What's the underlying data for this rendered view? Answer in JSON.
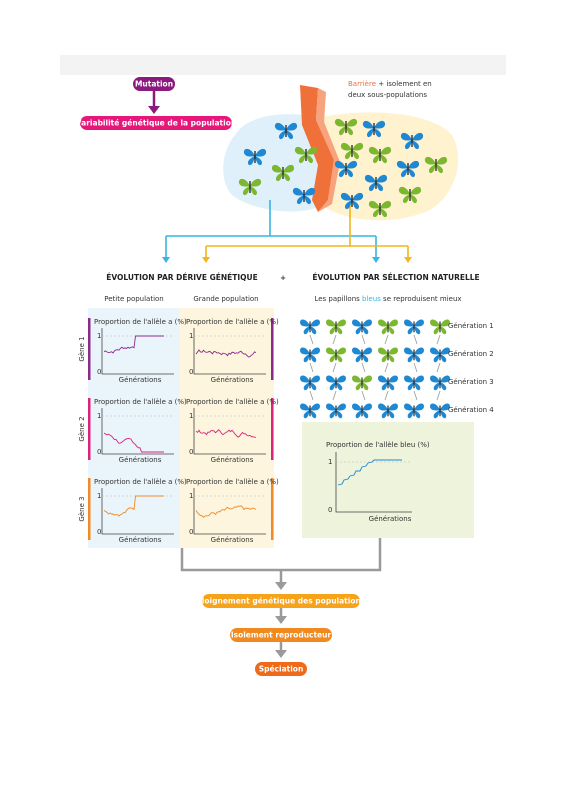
{
  "top": {
    "mutation": "Mutation",
    "variability": "Variabilité génétique de la population"
  },
  "barrier": {
    "word": "Barrière",
    "line1": "+ isolement en",
    "line2": "deux sous-populations"
  },
  "drift": {
    "title": "ÉVOLUTION PAR DÉRIVE GÉNÉTIQUE",
    "small": "Petite population",
    "large": "Grande population",
    "genes": [
      {
        "label": "Gène 1",
        "charts": [
          {
            "ylabel": "Proportion de l'allèle a (%)",
            "ytick_top": "1",
            "ytick_bottom": "0",
            "xlabel": "Générations"
          },
          {
            "ylabel": "Proportion de l'allèle a (%)",
            "ytick_top": "1",
            "ytick_bottom": "0",
            "xlabel": "Générations"
          }
        ]
      },
      {
        "label": "Gène 2",
        "charts": [
          {
            "ylabel": "Proportion de l'allèle a (%)",
            "ytick_top": "1",
            "ytick_bottom": "0",
            "xlabel": "Générations"
          },
          {
            "ylabel": "Proportion de l'allèle a (%)",
            "ytick_top": "1",
            "ytick_bottom": "0",
            "xlabel": "Générations"
          }
        ]
      },
      {
        "label": "Gène 3",
        "charts": [
          {
            "ylabel": "Proportion de l'allèle a (%)",
            "ytick_top": "1",
            "ytick_bottom": "0",
            "xlabel": "Générations"
          },
          {
            "ylabel": "Proportion de l'allèle a (%)",
            "ytick_top": "1",
            "ytick_bottom": "0",
            "xlabel": "Générations"
          }
        ]
      }
    ]
  },
  "plus": "+",
  "selection": {
    "title": "ÉVOLUTION PAR SÉLECTION NATURELLE",
    "caption": {
      "before": "Les papillons",
      "highlight": "bleus",
      "after": "se reproduisent mieux"
    },
    "generations": [
      "Génération 1",
      "Génération 2",
      "Génération 3",
      "Génération 4"
    ],
    "chart": {
      "ylabel": "Proportion de l'allèle bleu (%)",
      "ytick_top": "1",
      "ytick_bottom": "0",
      "xlabel": "Générations"
    }
  },
  "outcomes": [
    "Éloignement génétique des populations",
    "Isolement reproducteur",
    "Spéciation"
  ]
}
